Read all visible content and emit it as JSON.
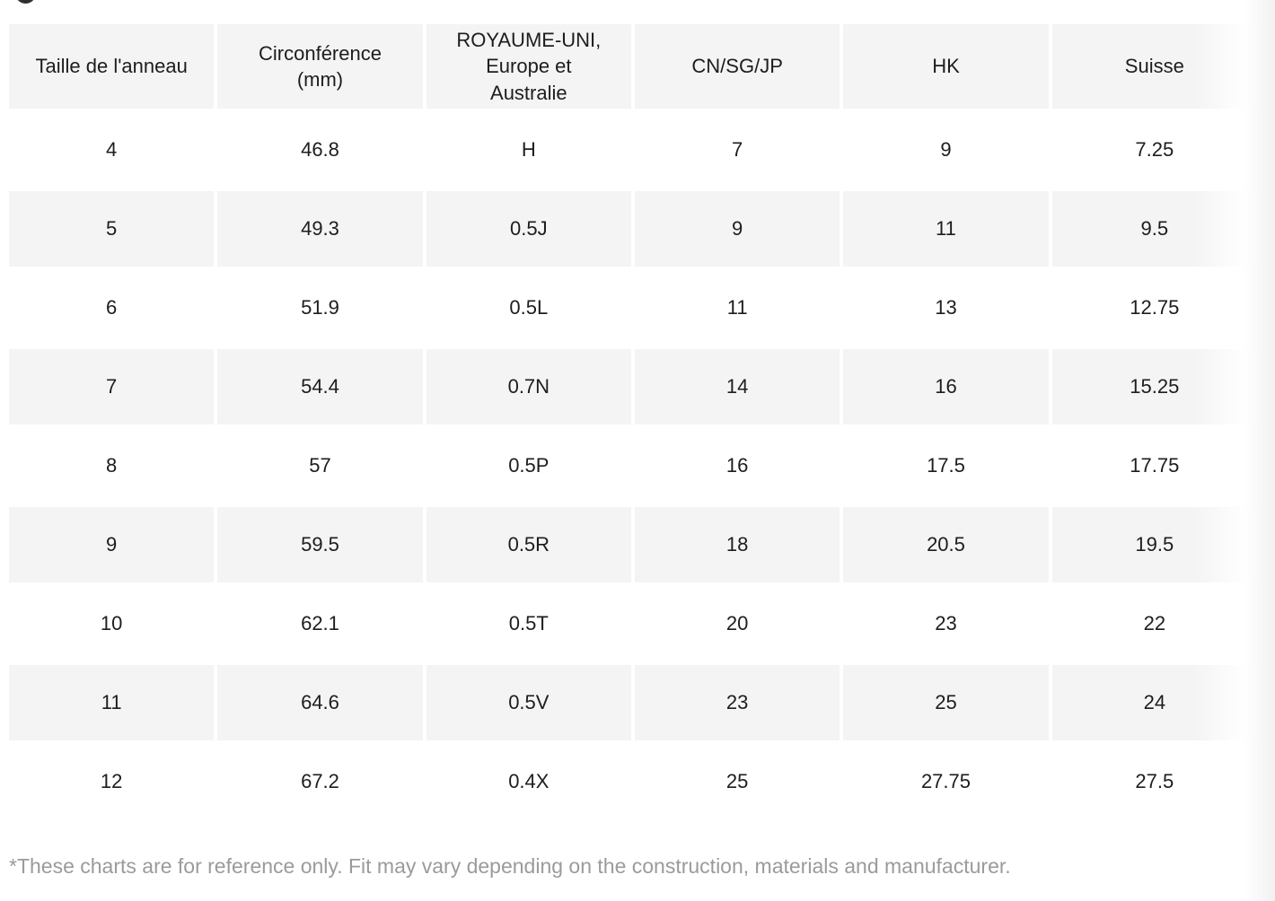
{
  "icons": {
    "partial_circle": "bottom arc of a dark circle cut off by top edge"
  },
  "table": {
    "columns": [
      "Taille de l'anneau",
      "Circonférence\n(mm)",
      "ROYAUME-UNI,\nEurope et\nAustralie",
      "CN/SG/JP",
      "HK",
      "Suisse"
    ],
    "rows": [
      [
        "4",
        "46.8",
        "H",
        "7",
        "9",
        "7.25"
      ],
      [
        "5",
        "49.3",
        "0.5J",
        "9",
        "11",
        "9.5"
      ],
      [
        "6",
        "51.9",
        "0.5L",
        "11",
        "13",
        "12.75"
      ],
      [
        "7",
        "54.4",
        "0.7N",
        "14",
        "16",
        "15.25"
      ],
      [
        "8",
        "57",
        "0.5P",
        "16",
        "17.5",
        "17.75"
      ],
      [
        "9",
        "59.5",
        "0.5R",
        "18",
        "20.5",
        "19.5"
      ],
      [
        "10",
        "62.1",
        "0.5T",
        "20",
        "23",
        "22"
      ],
      [
        "11",
        "64.6",
        "0.5V",
        "23",
        "25",
        "24"
      ],
      [
        "12",
        "67.2",
        "0.4X",
        "25",
        "27.75",
        "27.5"
      ]
    ]
  },
  "footnote": "*These charts are for reference only. Fit may vary depending on the construction, materials and manufacturer.",
  "colors": {
    "cell_gray": "#f4f4f4",
    "row_white": "#ffffff",
    "text": "#1d1d1d",
    "footnote_text": "#9b9b9b",
    "circle_icon": "#2f2f2f",
    "right_fade_edge": "#f1f1f1"
  }
}
